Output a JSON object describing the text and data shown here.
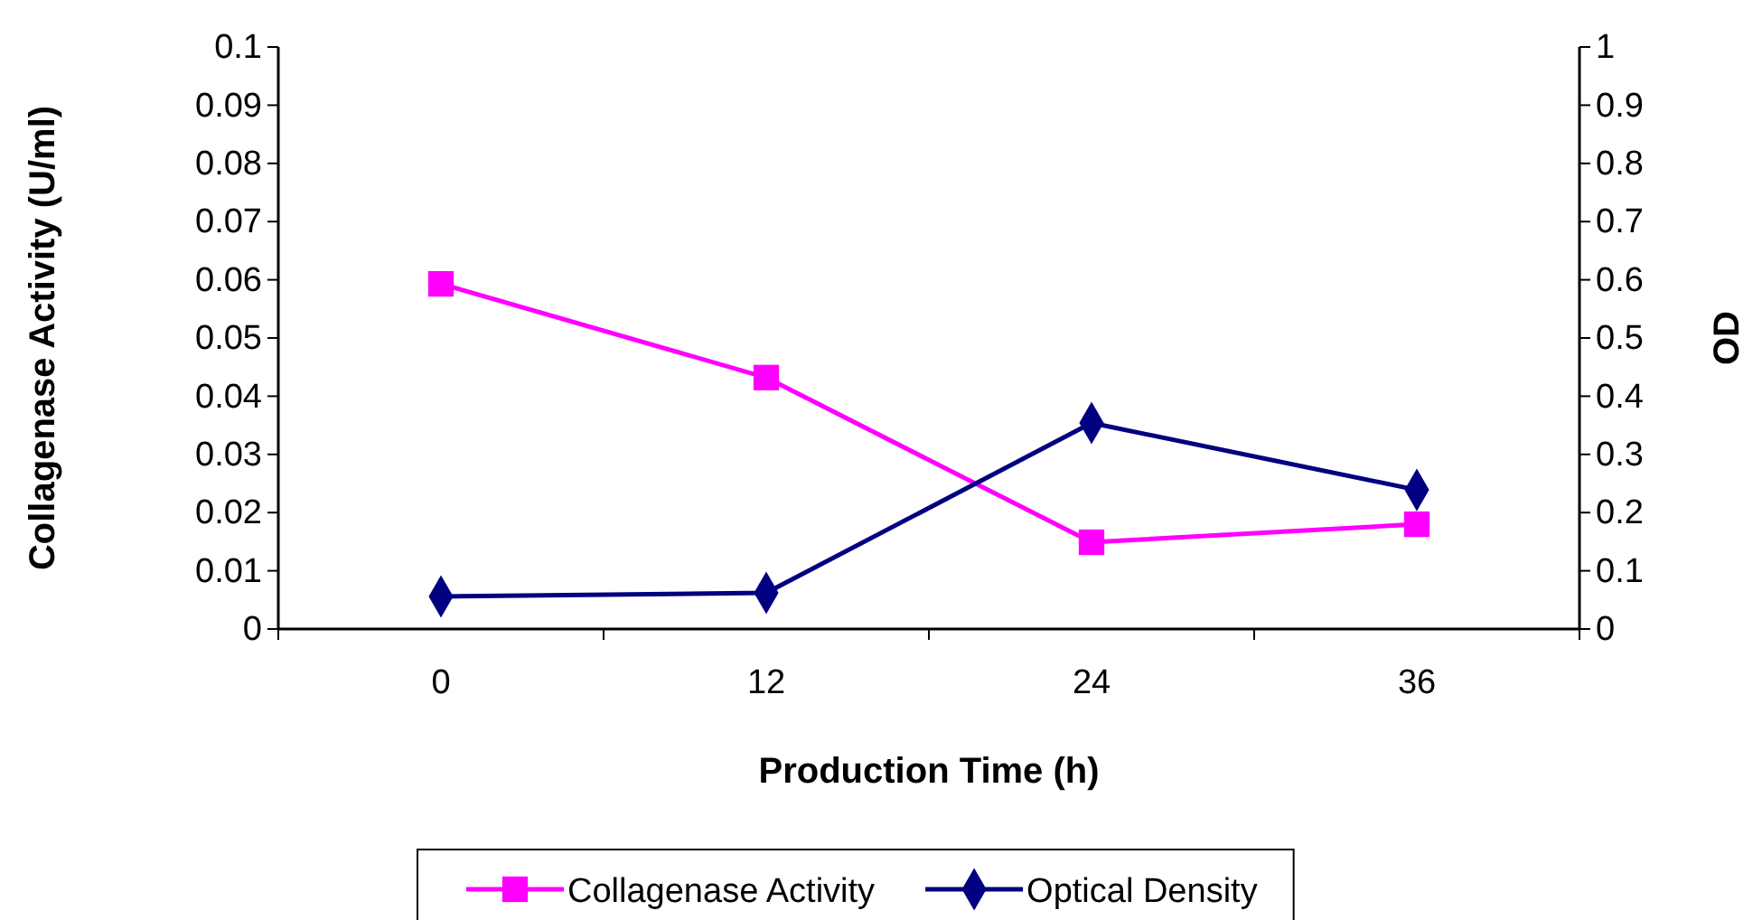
{
  "chart_data": {
    "type": "line",
    "xlabel": "Production Time (h)",
    "ylabel": "Collagenase Activity (U/ml)",
    "y2label": "OD",
    "categories": [
      "0",
      "12",
      "24",
      "36"
    ],
    "series": [
      {
        "name": "Collagenase Activity",
        "color": "#ff00ff",
        "marker": "square",
        "values": [
          0.0593,
          0.0432,
          0.0149,
          0.018
        ]
      },
      {
        "name": "Optical Density",
        "color": "#000080",
        "marker": "diamond",
        "axis": "y2",
        "values": [
          0.056,
          0.062,
          0.354,
          0.239
        ]
      }
    ],
    "ylim": [
      0,
      0.1
    ],
    "yticks": [
      0,
      0.01,
      0.02,
      0.03,
      0.04,
      0.05,
      0.06,
      0.07,
      0.08,
      0.09,
      0.1
    ],
    "y2lim": [
      0,
      1
    ],
    "y2ticks": [
      0,
      0.1,
      0.2,
      0.3,
      0.4,
      0.5,
      0.6,
      0.7,
      0.8,
      0.9,
      1
    ],
    "grid": false,
    "legend": "bottom"
  }
}
